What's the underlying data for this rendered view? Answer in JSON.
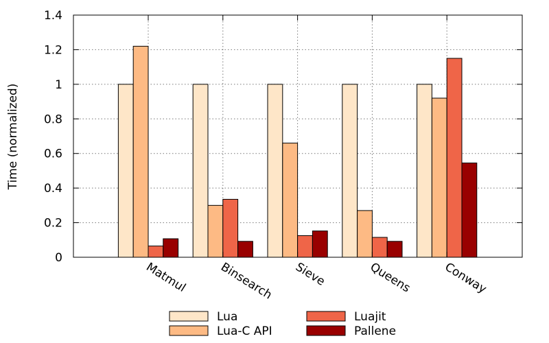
{
  "chart_data": {
    "type": "bar",
    "title": "",
    "xlabel": "",
    "ylabel": "Time (normalized)",
    "ylim": [
      0,
      1.4
    ],
    "yticks": [
      "0",
      "0.2",
      "0.4",
      "0.6",
      "0.8",
      "1",
      "1.2",
      "1.4"
    ],
    "grid": true,
    "legend_position": "bottom",
    "categories": [
      "Matmul",
      "Binsearch",
      "Sieve",
      "Queens",
      "Conway"
    ],
    "series": [
      {
        "name": "Lua",
        "color": "#fee6c8",
        "values": [
          1.0,
          1.0,
          1.0,
          1.0,
          1.0
        ]
      },
      {
        "name": "Lua-C API",
        "color": "#fdba84",
        "values": [
          1.22,
          0.3,
          0.66,
          0.27,
          0.92
        ]
      },
      {
        "name": "Luajit",
        "color": "#ef6548",
        "values": [
          0.065,
          0.335,
          0.125,
          0.115,
          1.15
        ]
      },
      {
        "name": "Pallene",
        "color": "#990000",
        "values": [
          0.107,
          0.092,
          0.152,
          0.092,
          0.545
        ]
      }
    ]
  }
}
